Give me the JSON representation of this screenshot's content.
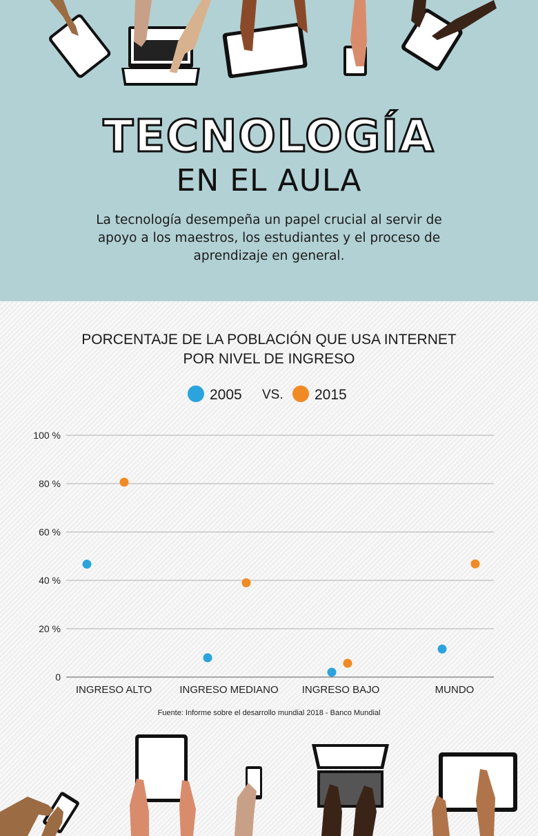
{
  "header": {
    "title": "TECNOLOGÍA",
    "subtitle": "EN EL AULA",
    "intro_lines": [
      "La tecnología desempeña un papel crucial al servir de",
      "apoyo a los maestros, los estudiantes y el proceso de",
      "aprendizaje en general."
    ]
  },
  "legend": {
    "item1": "2005",
    "vs": "VS.",
    "item2": "2015"
  },
  "colors": {
    "header_bg": "#b2d1d4",
    "series_2005": "#2ba3dc",
    "series_2015": "#f08a24"
  },
  "source": "Fuente: Informe sobre el desarrollo mundial 2018 - Banco Mundial",
  "chart_data": {
    "type": "scatter",
    "title_lines": [
      "PORCENTAJE DE LA POBLACIÓN QUE USA INTERNET",
      "POR NIVEL DE INGRESO"
    ],
    "categories": [
      "INGRESO ALTO",
      "INGRESO MEDIANO",
      "INGRESO BAJO",
      "MUNDO"
    ],
    "series": [
      {
        "name": "2005",
        "values": [
          46.7,
          8,
          2,
          11.6
        ]
      },
      {
        "name": "2015",
        "values": [
          80.6,
          39,
          5.7,
          46.8
        ]
      }
    ],
    "ylim": [
      0,
      100
    ],
    "yticks": [
      0,
      20,
      40,
      60,
      80,
      100
    ],
    "ytick_labels": [
      "0",
      "20 %",
      "40 %",
      "60 %",
      "80 %",
      "100 %"
    ],
    "grid": true,
    "legend_position": "top"
  }
}
